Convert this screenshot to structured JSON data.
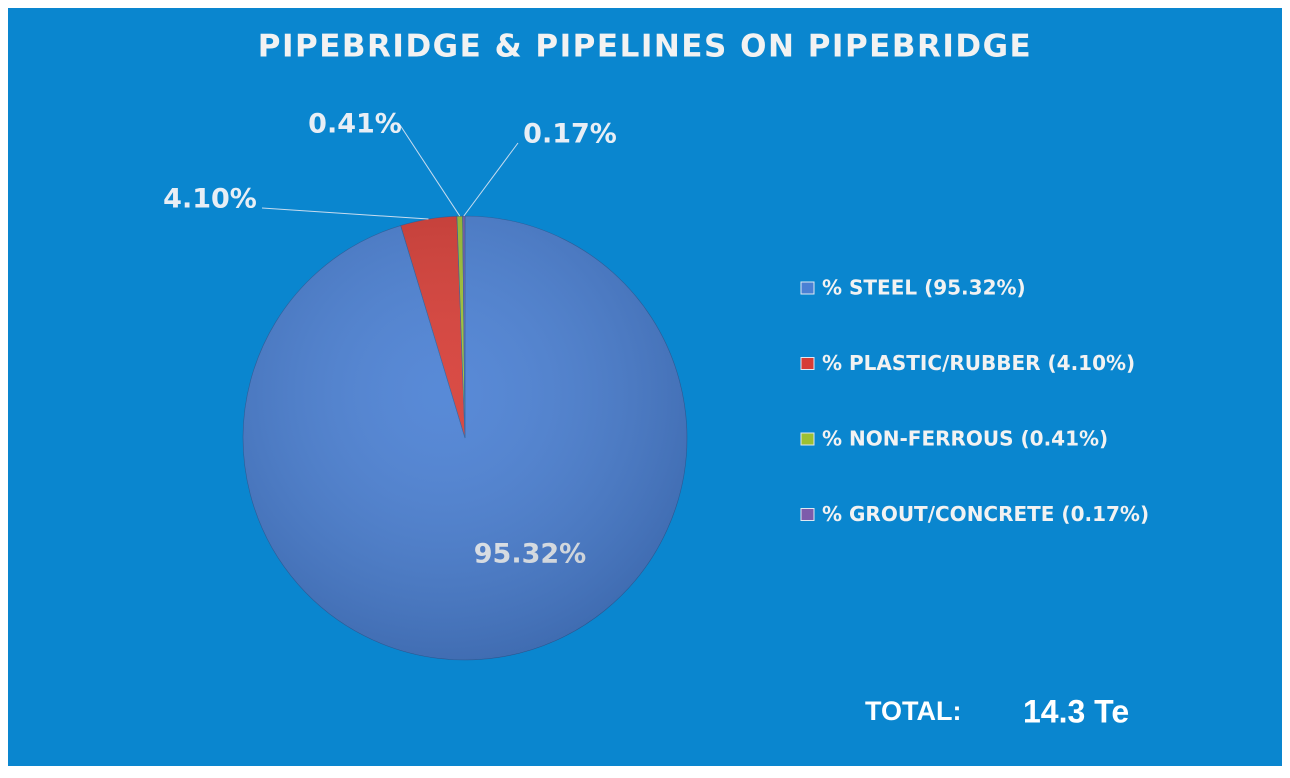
{
  "chart_data": {
    "type": "pie",
    "title": "PIPEBRIDGE & PIPELINES ON PIPEBRIDGE",
    "categories": [
      "% STEEL (95.32%)",
      "% PLASTIC/RUBBER (4.10%)",
      "% NON-FERROUS (0.41%)",
      "% GROUT/CONCRETE (0.17%)"
    ],
    "values": [
      95.32,
      4.1,
      0.41,
      0.17
    ],
    "value_labels": [
      "95.32%",
      "4.10%",
      "0.41%",
      "0.17%"
    ],
    "colors": [
      "#4a80d4",
      "#d63c35",
      "#9dc032",
      "#7d5bab"
    ],
    "annotations": [
      "TOTAL:",
      "14.3 Te"
    ]
  }
}
